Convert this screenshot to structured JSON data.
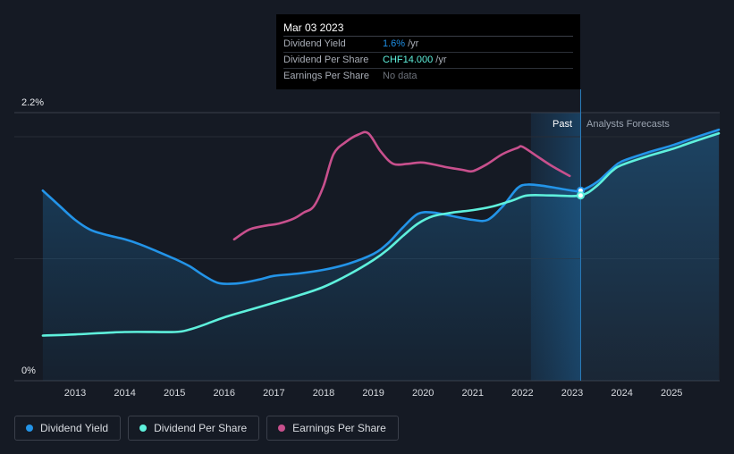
{
  "chart_data": {
    "type": "line",
    "y_axis": {
      "max_label": "2.2%",
      "min_label": "0%",
      "range": [
        0,
        2.2
      ]
    },
    "x_ticks": [
      "2013",
      "2014",
      "2015",
      "2016",
      "2017",
      "2018",
      "2019",
      "2020",
      "2021",
      "2022",
      "2023",
      "2024",
      "2025"
    ],
    "period_labels": {
      "past": "Past",
      "forecast": "Analysts Forecasts"
    },
    "divider_year": 2023.17,
    "series": [
      {
        "name": "Dividend Yield",
        "color": "#2394e8",
        "area": true,
        "points": [
          [
            2012.35,
            1.56
          ],
          [
            2012.7,
            1.43
          ],
          [
            2013.0,
            1.32
          ],
          [
            2013.3,
            1.24
          ],
          [
            2013.6,
            1.2
          ],
          [
            2014.0,
            1.16
          ],
          [
            2014.3,
            1.12
          ],
          [
            2014.6,
            1.07
          ],
          [
            2015.0,
            1.0
          ],
          [
            2015.3,
            0.94
          ],
          [
            2015.6,
            0.86
          ],
          [
            2015.9,
            0.8
          ],
          [
            2016.3,
            0.8
          ],
          [
            2016.7,
            0.83
          ],
          [
            2017.0,
            0.86
          ],
          [
            2017.5,
            0.88
          ],
          [
            2018.0,
            0.91
          ],
          [
            2018.5,
            0.96
          ],
          [
            2019.0,
            1.04
          ],
          [
            2019.3,
            1.13
          ],
          [
            2019.6,
            1.26
          ],
          [
            2019.9,
            1.37
          ],
          [
            2020.2,
            1.38
          ],
          [
            2020.6,
            1.35
          ],
          [
            2021.0,
            1.32
          ],
          [
            2021.3,
            1.32
          ],
          [
            2021.6,
            1.43
          ],
          [
            2021.9,
            1.58
          ],
          [
            2022.1,
            1.61
          ],
          [
            2022.4,
            1.6
          ],
          [
            2022.7,
            1.58
          ],
          [
            2023.0,
            1.56
          ],
          [
            2023.17,
            1.56
          ],
          [
            2023.5,
            1.63
          ],
          [
            2023.8,
            1.74
          ],
          [
            2024.0,
            1.8
          ],
          [
            2024.5,
            1.87
          ],
          [
            2025.0,
            1.93
          ],
          [
            2025.5,
            2.0
          ],
          [
            2025.95,
            2.06
          ]
        ]
      },
      {
        "name": "Dividend Per Share",
        "color": "#5ef0dc",
        "area": false,
        "points": [
          [
            2012.35,
            0.37
          ],
          [
            2013.0,
            0.38
          ],
          [
            2014.0,
            0.4
          ],
          [
            2015.0,
            0.4
          ],
          [
            2015.3,
            0.42
          ],
          [
            2015.6,
            0.46
          ],
          [
            2016.0,
            0.52
          ],
          [
            2016.5,
            0.58
          ],
          [
            2017.0,
            0.64
          ],
          [
            2017.5,
            0.7
          ],
          [
            2018.0,
            0.77
          ],
          [
            2018.5,
            0.87
          ],
          [
            2019.0,
            0.99
          ],
          [
            2019.3,
            1.08
          ],
          [
            2019.6,
            1.19
          ],
          [
            2019.9,
            1.29
          ],
          [
            2020.2,
            1.35
          ],
          [
            2020.6,
            1.38
          ],
          [
            2021.0,
            1.4
          ],
          [
            2021.4,
            1.43
          ],
          [
            2021.8,
            1.48
          ],
          [
            2022.1,
            1.52
          ],
          [
            2022.6,
            1.52
          ],
          [
            2023.17,
            1.52
          ],
          [
            2023.5,
            1.6
          ],
          [
            2023.8,
            1.72
          ],
          [
            2024.0,
            1.77
          ],
          [
            2024.5,
            1.84
          ],
          [
            2025.0,
            1.9
          ],
          [
            2025.5,
            1.97
          ],
          [
            2025.95,
            2.03
          ]
        ]
      },
      {
        "name": "Earnings Per Share",
        "color": "#c8508d",
        "area": false,
        "points": [
          [
            2016.2,
            1.16
          ],
          [
            2016.5,
            1.24
          ],
          [
            2016.8,
            1.27
          ],
          [
            2017.1,
            1.29
          ],
          [
            2017.4,
            1.33
          ],
          [
            2017.6,
            1.38
          ],
          [
            2017.8,
            1.43
          ],
          [
            2018.0,
            1.6
          ],
          [
            2018.2,
            1.86
          ],
          [
            2018.45,
            1.96
          ],
          [
            2018.7,
            2.02
          ],
          [
            2018.9,
            2.03
          ],
          [
            2019.15,
            1.88
          ],
          [
            2019.4,
            1.78
          ],
          [
            2019.7,
            1.78
          ],
          [
            2020.0,
            1.79
          ],
          [
            2020.5,
            1.75
          ],
          [
            2020.8,
            1.73
          ],
          [
            2021.0,
            1.72
          ],
          [
            2021.3,
            1.78
          ],
          [
            2021.6,
            1.86
          ],
          [
            2021.9,
            1.91
          ],
          [
            2022.0,
            1.92
          ],
          [
            2022.3,
            1.84
          ],
          [
            2022.6,
            1.76
          ],
          [
            2022.95,
            1.68
          ]
        ]
      }
    ]
  },
  "tooltip": {
    "date": "Mar 03 2023",
    "rows": [
      {
        "label": "Dividend Yield",
        "value": "1.6%",
        "unit": "/yr"
      },
      {
        "label": "Dividend Per Share",
        "value": "CHF14.000",
        "unit": "/yr"
      },
      {
        "label": "Earnings Per Share",
        "value": "No data",
        "unit": ""
      }
    ]
  },
  "legend": [
    {
      "label": "Dividend Yield",
      "color": "#2394e8"
    },
    {
      "label": "Dividend Per Share",
      "color": "#5ef0dc"
    },
    {
      "label": "Earnings Per Share",
      "color": "#c8508d"
    }
  ]
}
